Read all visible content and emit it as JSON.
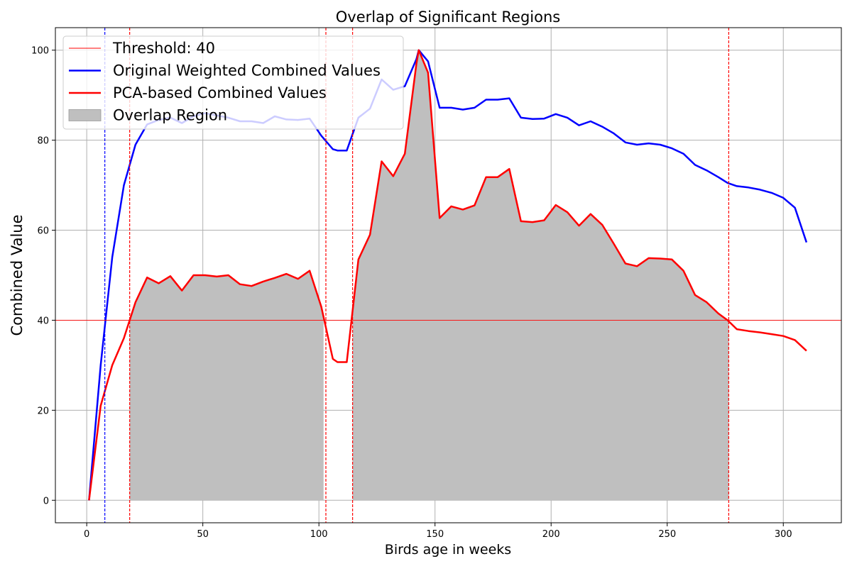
{
  "chart_data": {
    "type": "line",
    "title": "Overlap of Significant Regions",
    "xlabel": "Birds age in weeks",
    "ylabel": "Combined Value",
    "xlim": [
      -13.5,
      325
    ],
    "ylim": [
      -5,
      105
    ],
    "x_ticks": [
      0,
      50,
      100,
      150,
      200,
      250,
      300
    ],
    "y_ticks": [
      0,
      20,
      40,
      60,
      80,
      100
    ],
    "grid": true,
    "legend_position": "top-left",
    "threshold": {
      "label": "Threshold: 40",
      "value": 40,
      "color": "#ff0000"
    },
    "overlap_region": {
      "label": "Overlap Region",
      "color": "#bfbfbf",
      "intervals": [
        [
          18.5,
          102
        ],
        [
          114.5,
          276.5
        ]
      ]
    },
    "vlines": [
      {
        "x": 7.8,
        "color": "#0000ff"
      },
      {
        "x": 18.5,
        "color": "#ff0000"
      },
      {
        "x": 103,
        "color": "#ff0000"
      },
      {
        "x": 114.5,
        "color": "#ff0000"
      },
      {
        "x": 276.5,
        "color": "#ff0000"
      }
    ],
    "series": [
      {
        "name": "Original Weighted Combined Values",
        "color": "#0000ff",
        "x": [
          1,
          6,
          11,
          16,
          21,
          26,
          31,
          36,
          41,
          46,
          51,
          56,
          61,
          66,
          71,
          76,
          81,
          86,
          91,
          96,
          101,
          106,
          108,
          112,
          117,
          122,
          127,
          132,
          137,
          142,
          143,
          147,
          152,
          157,
          162,
          167,
          172,
          177,
          182,
          187,
          192,
          197,
          202,
          207,
          212,
          217,
          222,
          227,
          232,
          237,
          242,
          247,
          252,
          257,
          262,
          267,
          272,
          276,
          280,
          285,
          290,
          295,
          300,
          305,
          310
        ],
        "values": [
          0,
          30,
          54,
          70,
          79,
          83.5,
          84.5,
          85,
          83.8,
          85.3,
          86,
          85.5,
          85,
          84.2,
          84.2,
          83.8,
          85.3,
          84.6,
          84.5,
          84.8,
          81,
          78,
          77.7,
          77.7,
          85,
          87,
          93.5,
          91.2,
          92,
          98,
          100,
          97.5,
          87.2,
          87.2,
          86.8,
          87.2,
          89,
          89,
          89.3,
          85,
          84.7,
          84.8,
          85.8,
          85,
          83.3,
          84.2,
          83,
          81.5,
          79.5,
          79,
          79.3,
          79,
          78.2,
          77,
          74.5,
          73.3,
          71.8,
          70.5,
          69.8,
          69.5,
          69,
          68.3,
          67.2,
          65,
          57.3
        ]
      },
      {
        "name": "PCA-based Combined Values",
        "color": "#ff0000",
        "x": [
          1,
          6,
          11,
          16,
          21,
          26,
          31,
          36,
          41,
          46,
          51,
          56,
          61,
          66,
          71,
          76,
          81,
          86,
          91,
          96,
          101,
          106,
          108,
          112,
          117,
          122,
          127,
          132,
          137,
          142,
          143,
          147,
          152,
          157,
          162,
          167,
          172,
          177,
          182,
          187,
          192,
          197,
          202,
          207,
          212,
          217,
          222,
          227,
          232,
          237,
          242,
          247,
          252,
          257,
          262,
          267,
          272,
          276,
          280,
          285,
          290,
          295,
          300,
          305,
          310
        ],
        "values": [
          0,
          21,
          30,
          36,
          44,
          49.5,
          48.2,
          49.8,
          46.6,
          50,
          50,
          49.7,
          50,
          48,
          47.6,
          48.6,
          49.4,
          50.3,
          49.2,
          51,
          43,
          31.4,
          30.7,
          30.7,
          53.5,
          59,
          75.3,
          72,
          77,
          97,
          100,
          95,
          62.7,
          65.3,
          64.6,
          65.5,
          71.8,
          71.8,
          73.6,
          62,
          61.8,
          62.2,
          65.6,
          64,
          61,
          63.6,
          61.2,
          57,
          52.6,
          52,
          53.8,
          53.7,
          53.5,
          51,
          45.6,
          44,
          41.5,
          40,
          38,
          37.6,
          37.3,
          36.9,
          36.5,
          35.6,
          33.2
        ]
      }
    ],
    "legend": [
      {
        "label": "Threshold: 40",
        "kind": "thin-line",
        "color": "#ff0000"
      },
      {
        "label": "Original Weighted Combined Values",
        "kind": "line",
        "color": "#0000ff"
      },
      {
        "label": "PCA-based Combined Values",
        "kind": "line",
        "color": "#ff0000"
      },
      {
        "label": "Overlap Region",
        "kind": "patch",
        "color": "#bfbfbf"
      }
    ]
  }
}
